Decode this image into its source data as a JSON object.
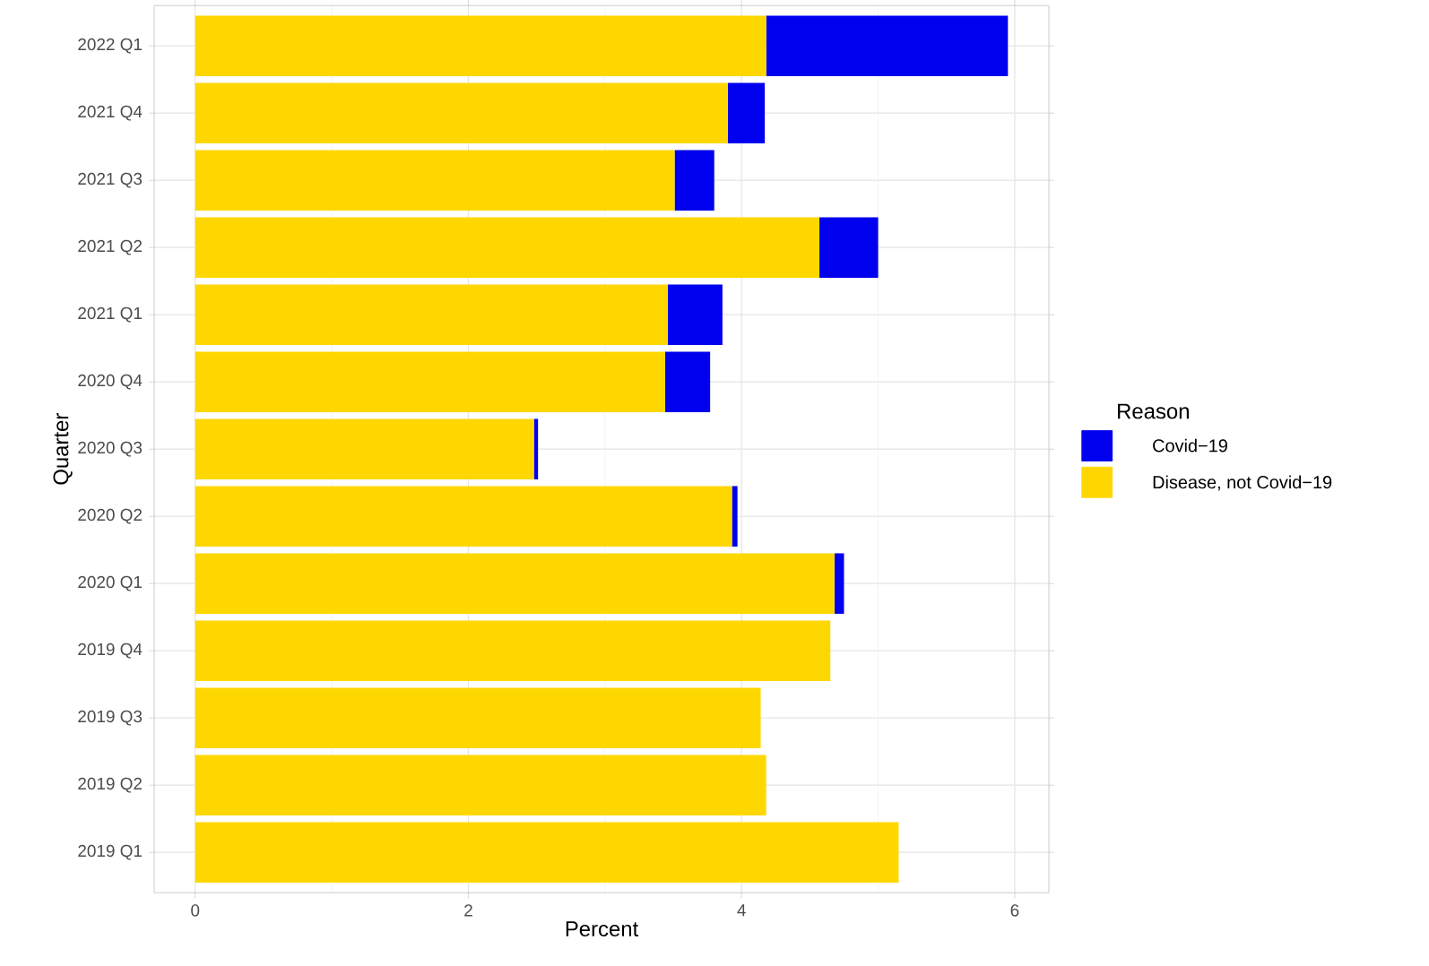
{
  "chart_data": {
    "type": "bar",
    "orientation": "horizontal",
    "stacked": true,
    "xlabel": "Percent",
    "ylabel": "Quarter",
    "legend_title": "Reason",
    "legend": "right",
    "grid": true,
    "categories": [
      "2022 Q1",
      "2021 Q4",
      "2021 Q3",
      "2021 Q2",
      "2021 Q1",
      "2020 Q4",
      "2020 Q3",
      "2020 Q2",
      "2020 Q1",
      "2019 Q4",
      "2019 Q3",
      "2019 Q2",
      "2019 Q1"
    ],
    "series": [
      {
        "name": "Disease, not Covid−19",
        "color": "#ffd700",
        "values": [
          4.18,
          3.9,
          3.51,
          4.57,
          3.46,
          3.44,
          2.48,
          3.93,
          4.68,
          4.65,
          4.14,
          4.18,
          5.15
        ]
      },
      {
        "name": "Covid−19",
        "color": "#0000ee",
        "values": [
          1.77,
          0.27,
          0.29,
          0.43,
          0.4,
          0.33,
          0.03,
          0.04,
          0.07,
          null,
          null,
          null,
          null
        ]
      }
    ],
    "xlim": [
      -0.3,
      6.25
    ],
    "xticks": [
      0,
      2,
      4,
      6
    ]
  }
}
